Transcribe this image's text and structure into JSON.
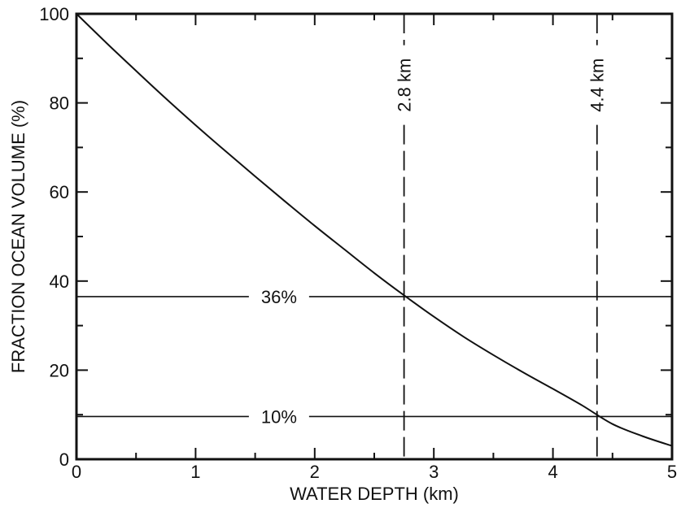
{
  "chart_data": {
    "type": "line",
    "title": "",
    "xlabel": "WATER DEPTH (km)",
    "ylabel": "FRACTION OCEAN VOLUME (%)",
    "xlim": [
      0,
      5
    ],
    "ylim": [
      0,
      100
    ],
    "xticks": [
      0,
      1,
      2,
      3,
      4,
      5
    ],
    "xtick_labels": [
      "0",
      "1",
      "2",
      "3",
      "4",
      "5"
    ],
    "yticks": [
      0,
      20,
      40,
      60,
      80,
      100
    ],
    "ytick_labels": [
      "0",
      "20",
      "40",
      "60",
      "80",
      "100"
    ],
    "grid": false,
    "legend": "none",
    "series": [
      {
        "x": [
          0,
          0.25,
          0.5,
          0.75,
          1.0,
          1.25,
          1.5,
          1.75,
          2.0,
          2.25,
          2.5,
          2.75,
          3.0,
          3.25,
          3.5,
          3.75,
          4.0,
          4.25,
          4.5,
          4.75,
          5.0
        ],
        "values": [
          100,
          93.5,
          87.2,
          81.0,
          75.0,
          69.2,
          63.5,
          57.9,
          52.4,
          47.1,
          41.8,
          36.8,
          32.0,
          27.5,
          23.4,
          19.5,
          15.8,
          12.0,
          7.9,
          5.2,
          3.0
        ]
      }
    ],
    "annotations": [
      {
        "kind": "hline",
        "y": 36.5,
        "label": "36%",
        "style": "solid"
      },
      {
        "kind": "hline",
        "y": 9.6,
        "label": "10%",
        "style": "solid"
      },
      {
        "kind": "vline",
        "x": 2.75,
        "label": "2.8 km",
        "style": "dashed"
      },
      {
        "kind": "vline",
        "x": 4.37,
        "label": "4.4 km",
        "style": "dashed"
      }
    ]
  }
}
